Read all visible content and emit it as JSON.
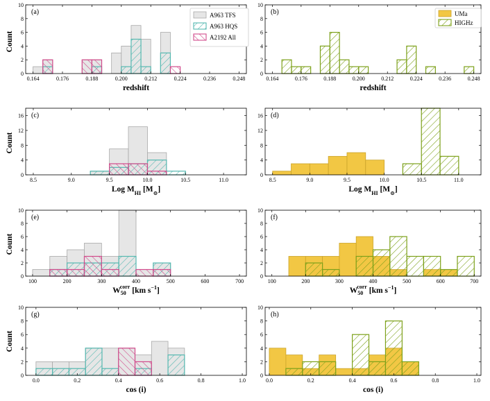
{
  "colors": {
    "a963_tfs_fill": "#e6e6e6",
    "a963_tfs_edge": "#a8a8a8",
    "a963_hqs": "#55b8b0",
    "a2192": "#d14a8b",
    "uma_fill": "#f2c744",
    "uma_edge": "#caa32a",
    "highz": "#7da11a"
  },
  "legends": {
    "left": [
      "A963 TFS",
      "A963 HQS",
      "A2192 All"
    ],
    "right": [
      "UMa",
      "HIGHz"
    ]
  },
  "y_axis_label": "Count",
  "chart_data": [
    {
      "id": "a",
      "panel_label": "(a)",
      "type": "bar",
      "xlabel": "redshift",
      "ylabel": "Count",
      "xlim": [
        0.161,
        0.251
      ],
      "ylim": [
        0,
        10
      ],
      "xticks": [
        0.164,
        0.176,
        0.188,
        0.2,
        0.212,
        0.224,
        0.236,
        0.248
      ],
      "xtick_labels": [
        "0.164",
        "0.176",
        "0.188",
        "0.200",
        "0.212",
        "0.224",
        "0.236",
        "0.248"
      ],
      "yticks": [
        0,
        2,
        4,
        6,
        8,
        10
      ],
      "ytick_labels": [
        "0",
        "2",
        "4",
        "6",
        "8",
        "10"
      ],
      "bin_edges": [
        0.164,
        0.168,
        0.172,
        0.176,
        0.18,
        0.184,
        0.188,
        0.192,
        0.196,
        0.2,
        0.204,
        0.208,
        0.212,
        0.216,
        0.22,
        0.224
      ],
      "series": [
        {
          "name": "A963 TFS",
          "style": "tfs",
          "values": [
            1,
            2,
            0,
            0,
            0,
            2,
            2,
            0,
            3,
            4,
            7,
            5,
            0,
            6,
            0
          ]
        },
        {
          "name": "A963 HQS",
          "style": "hqs",
          "values": [
            0,
            1,
            0,
            0,
            0,
            0,
            1,
            0,
            0,
            1,
            5,
            1,
            0,
            3,
            0
          ]
        },
        {
          "name": "A2192 All",
          "style": "a2192",
          "values": [
            0,
            2,
            0,
            0,
            0,
            2,
            2,
            0,
            0,
            0,
            0,
            0,
            0,
            0,
            1
          ]
        }
      ]
    },
    {
      "id": "b",
      "panel_label": "(b)",
      "type": "bar",
      "xlabel": "redshift",
      "ylabel": "",
      "xlim": [
        0.161,
        0.251
      ],
      "ylim": [
        0,
        10
      ],
      "xticks": [
        0.164,
        0.176,
        0.188,
        0.2,
        0.212,
        0.224,
        0.236,
        0.248
      ],
      "xtick_labels": [
        "0.164",
        "0.176",
        "0.188",
        "0.200",
        "0.212",
        "0.224",
        "0.236",
        "0.248"
      ],
      "yticks": [
        0,
        2,
        4,
        6,
        8,
        10
      ],
      "ytick_labels": [
        "0",
        "2",
        "4",
        "6",
        "8",
        "10"
      ],
      "bin_edges": [
        0.168,
        0.172,
        0.176,
        0.18,
        0.184,
        0.188,
        0.192,
        0.196,
        0.2,
        0.204,
        0.208,
        0.212,
        0.216,
        0.22,
        0.224,
        0.228,
        0.232,
        0.236,
        0.24,
        0.244,
        0.248
      ],
      "series": [
        {
          "name": "HIGHz",
          "style": "highz",
          "values": [
            2,
            1,
            1,
            0,
            4,
            6,
            2,
            1,
            1,
            0,
            0,
            0,
            2,
            4,
            0,
            1,
            0,
            0,
            0,
            1
          ]
        }
      ]
    },
    {
      "id": "c",
      "panel_label": "(c)",
      "type": "bar",
      "xlabel": "Log M_HI [M_sun]",
      "ylabel": "Count",
      "xlim": [
        8.4,
        11.3
      ],
      "ylim": [
        0,
        18
      ],
      "xticks": [
        8.5,
        9.0,
        9.5,
        10.0,
        10.5,
        11.0
      ],
      "xtick_labels": [
        "8.5",
        "9.0",
        "9.5",
        "10.0",
        "10.5",
        "11.0"
      ],
      "yticks": [
        0,
        4,
        8,
        12,
        16
      ],
      "ytick_labels": [
        "0",
        "4",
        "8",
        "12",
        "16"
      ],
      "bin_edges": [
        9.25,
        9.5,
        9.75,
        10.0,
        10.25,
        10.5
      ],
      "series": [
        {
          "name": "A963 TFS",
          "style": "tfs",
          "values": [
            1,
            7,
            13,
            6,
            0
          ]
        },
        {
          "name": "A963 HQS",
          "style": "hqs",
          "values": [
            1,
            2,
            3,
            4,
            1
          ]
        },
        {
          "name": "A2192 All",
          "style": "a2192",
          "values": [
            0,
            3,
            3,
            1,
            0
          ]
        }
      ]
    },
    {
      "id": "d",
      "panel_label": "(d)",
      "type": "bar",
      "xlabel": "Log M_HI [M_sun]",
      "ylabel": "",
      "xlim": [
        8.4,
        11.3
      ],
      "ylim": [
        0,
        18
      ],
      "xticks": [
        8.5,
        9.0,
        9.5,
        10.0,
        10.5,
        11.0
      ],
      "xtick_labels": [
        "8.5",
        "9.0",
        "9.5",
        "10.0",
        "10.5",
        "11.0"
      ],
      "yticks": [
        0,
        4,
        8,
        12,
        16
      ],
      "ytick_labels": [
        "0",
        "4",
        "8",
        "12",
        "16"
      ],
      "bin_edges_uma": [
        8.5,
        8.75,
        9.0,
        9.25,
        9.5,
        9.75,
        10.0
      ],
      "bin_edges_highz": [
        10.25,
        10.5,
        10.75,
        11.0
      ],
      "series": [
        {
          "name": "UMa",
          "style": "uma",
          "edges": "bin_edges_uma",
          "values": [
            1,
            3,
            3,
            5,
            6,
            4
          ]
        },
        {
          "name": "HIGHz",
          "style": "highz",
          "edges": "bin_edges_highz",
          "values": [
            3,
            18,
            5
          ]
        }
      ]
    },
    {
      "id": "e",
      "panel_label": "(e)",
      "type": "bar",
      "xlabel": "W50corr [km s^-1]",
      "ylabel": "Count",
      "xlim": [
        80,
        720
      ],
      "ylim": [
        0,
        10
      ],
      "xticks": [
        100,
        200,
        300,
        400,
        500,
        600,
        700
      ],
      "xtick_labels": [
        "100",
        "200",
        "300",
        "400",
        "500",
        "600",
        "700"
      ],
      "yticks": [
        0,
        2,
        4,
        6,
        8,
        10
      ],
      "ytick_labels": [
        "0",
        "2",
        "4",
        "6",
        "8",
        "10"
      ],
      "bin_edges": [
        100,
        150,
        200,
        250,
        300,
        350,
        400,
        450,
        500
      ],
      "series": [
        {
          "name": "A963 TFS",
          "style": "tfs",
          "values": [
            1,
            3,
            4,
            5,
            3,
            10,
            1,
            2
          ]
        },
        {
          "name": "A963 HQS",
          "style": "hqs",
          "values": [
            0,
            1,
            2,
            2,
            2,
            3,
            0,
            2
          ]
        },
        {
          "name": "A2192 All",
          "style": "a2192",
          "values": [
            0,
            1,
            1,
            3,
            1,
            0,
            1,
            1
          ]
        }
      ]
    },
    {
      "id": "f",
      "panel_label": "(f)",
      "type": "bar",
      "xlabel": "W50corr [km s^-1]",
      "ylabel": "",
      "xlim": [
        80,
        720
      ],
      "ylim": [
        0,
        10
      ],
      "xticks": [
        100,
        200,
        300,
        400,
        500,
        600,
        700
      ],
      "xtick_labels": [
        "100",
        "200",
        "300",
        "400",
        "500",
        "600",
        "700"
      ],
      "yticks": [
        0,
        2,
        4,
        6,
        8,
        10
      ],
      "ytick_labels": [
        "0",
        "2",
        "4",
        "6",
        "8",
        "10"
      ],
      "bin_edges": [
        150,
        200,
        250,
        300,
        350,
        400,
        450,
        500,
        550,
        600,
        650,
        700
      ],
      "series": [
        {
          "name": "UMa",
          "style": "uma",
          "values": [
            3,
            3,
            3,
            5,
            6,
            3,
            1,
            0,
            1,
            1,
            0
          ]
        },
        {
          "name": "HIGHz",
          "style": "highz",
          "values": [
            0,
            2,
            1,
            0,
            3,
            4,
            6,
            3,
            3,
            1,
            3
          ]
        }
      ]
    },
    {
      "id": "g",
      "panel_label": "(g)",
      "type": "bar",
      "xlabel": "cos (i)",
      "ylabel": "Count",
      "xlim": [
        -0.05,
        1.02
      ],
      "ylim": [
        0,
        10
      ],
      "xticks": [
        0.0,
        0.2,
        0.4,
        0.6,
        0.8,
        1.0
      ],
      "xtick_labels": [
        "0.0",
        "0.2",
        "0.4",
        "0.6",
        "0.8",
        "1.0"
      ],
      "yticks": [
        0,
        2,
        4,
        6,
        8,
        10
      ],
      "ytick_labels": [
        "0",
        "2",
        "4",
        "6",
        "8",
        "10"
      ],
      "bin_edges": [
        0.0,
        0.08,
        0.16,
        0.24,
        0.32,
        0.4,
        0.48,
        0.56,
        0.64,
        0.72
      ],
      "series": [
        {
          "name": "A963 TFS",
          "style": "tfs",
          "values": [
            2,
            2,
            2,
            4,
            4,
            4,
            3,
            5,
            4
          ]
        },
        {
          "name": "A963 HQS",
          "style": "hqs",
          "values": [
            1,
            1,
            1,
            4,
            1,
            0,
            1,
            0,
            3
          ]
        },
        {
          "name": "A2192 All",
          "style": "a2192",
          "values": [
            0,
            0,
            0,
            0,
            0,
            4,
            2,
            0,
            0
          ]
        }
      ]
    },
    {
      "id": "h",
      "panel_label": "(h)",
      "type": "bar",
      "xlabel": "cos (i)",
      "ylabel": "",
      "xlim": [
        -0.02,
        1.02
      ],
      "ylim": [
        0,
        10
      ],
      "xticks": [
        0.0,
        0.2,
        0.4,
        0.6,
        0.8,
        1.0
      ],
      "xtick_labels": [
        "0.0",
        "0.2",
        "0.4",
        "0.6",
        "0.8",
        "1.0"
      ],
      "yticks": [
        0,
        2,
        4,
        6,
        8,
        10
      ],
      "ytick_labels": [
        "0",
        "2",
        "4",
        "6",
        "8",
        "10"
      ],
      "bin_edges": [
        0.0,
        0.08,
        0.16,
        0.24,
        0.32,
        0.4,
        0.48,
        0.56,
        0.64,
        0.72
      ],
      "series": [
        {
          "name": "UMa",
          "style": "uma",
          "values": [
            4,
            3,
            1,
            3,
            1,
            1,
            3,
            4,
            2
          ]
        },
        {
          "name": "HIGHz",
          "style": "highz",
          "values": [
            0,
            1,
            2,
            2,
            0,
            6,
            2,
            8,
            2
          ]
        }
      ]
    }
  ]
}
